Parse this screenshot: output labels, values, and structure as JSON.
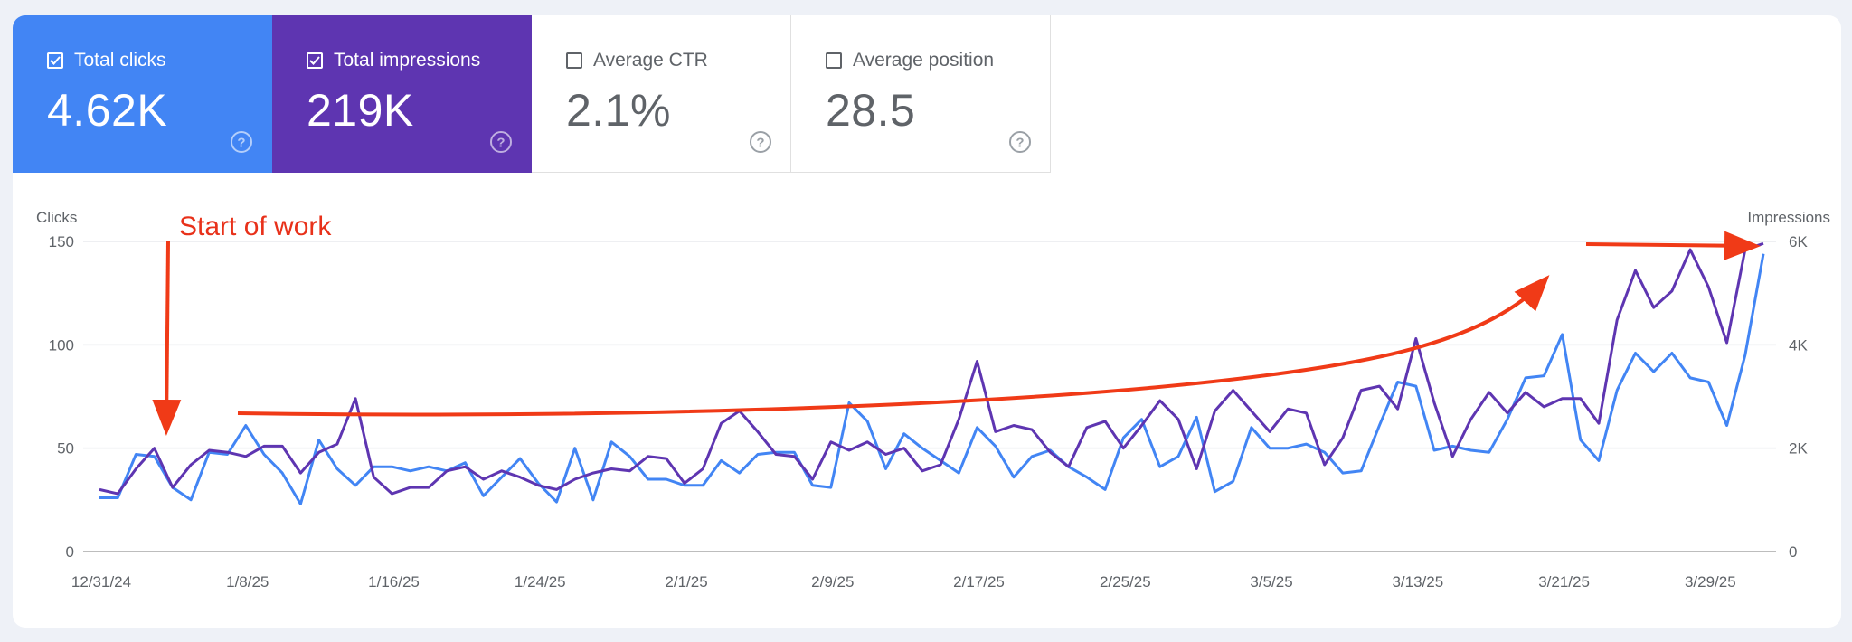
{
  "cards": [
    {
      "label": "Total clicks",
      "value": "4.62K",
      "checked": true,
      "color": "#4285f4"
    },
    {
      "label": "Total impressions",
      "value": "219K",
      "checked": true,
      "color": "#5e35b1"
    },
    {
      "label": "Average CTR",
      "value": "2.1%",
      "checked": false,
      "color": "#ffffff"
    },
    {
      "label": "Average position",
      "value": "28.5",
      "checked": false,
      "color": "#ffffff"
    }
  ],
  "annotation": {
    "text": "Start of work",
    "color": "#e8311a"
  },
  "chart_data": {
    "type": "line",
    "xlabel": "",
    "ylabel": "Clicks",
    "ylabel_right": "Impressions",
    "ylim": [
      0,
      150
    ],
    "ylim_right": [
      0,
      6000
    ],
    "grid": true,
    "x_tick_labels": [
      "12/31/24",
      "1/8/25",
      "1/16/25",
      "1/24/25",
      "2/1/25",
      "2/9/25",
      "2/17/25",
      "2/25/25",
      "3/5/25",
      "3/13/25",
      "3/21/25",
      "3/29/25"
    ],
    "y_tick_labels_left": [
      "0",
      "50",
      "100",
      "150"
    ],
    "y_tick_labels_right": [
      "0",
      "2K",
      "4K",
      "6K"
    ],
    "x_start": "12/31/24",
    "series": [
      {
        "name": "Total clicks",
        "axis": "left",
        "color": "#4285f4",
        "values": [
          26,
          26,
          47,
          46,
          31,
          25,
          48,
          47,
          61,
          47,
          38,
          23,
          54,
          40,
          32,
          41,
          41,
          39,
          41,
          39,
          43,
          27,
          36,
          45,
          33,
          24,
          50,
          25,
          53,
          46,
          35,
          35,
          32,
          32,
          44,
          38,
          47,
          48,
          48,
          32,
          31,
          72,
          63,
          40,
          57,
          50,
          44,
          38,
          60,
          51,
          36,
          46,
          49,
          41,
          36,
          30,
          55,
          64,
          41,
          46,
          65,
          29,
          34,
          60,
          50,
          50,
          52,
          48,
          38,
          39,
          61,
          82,
          80,
          49,
          51,
          49,
          48,
          64,
          84,
          85,
          105,
          54,
          44,
          78,
          96,
          87,
          96,
          84,
          82,
          61,
          95,
          144
        ]
      },
      {
        "name": "Total impressions",
        "axis": "right",
        "color": "#5e35b1",
        "values": [
          1200,
          1120,
          1600,
          2000,
          1240,
          1680,
          1960,
          1920,
          1840,
          2040,
          2040,
          1520,
          1920,
          2080,
          2960,
          1440,
          1120,
          1240,
          1240,
          1560,
          1640,
          1400,
          1560,
          1440,
          1280,
          1200,
          1400,
          1520,
          1600,
          1560,
          1840,
          1800,
          1320,
          1600,
          2480,
          2720,
          2320,
          1880,
          1840,
          1400,
          2120,
          1960,
          2120,
          1880,
          2000,
          1560,
          1680,
          2560,
          3680,
          2320,
          2440,
          2360,
          1920,
          1640,
          2400,
          2520,
          2000,
          2440,
          2920,
          2560,
          1600,
          2720,
          3120,
          2720,
          2320,
          2760,
          2680,
          1680,
          2200,
          3120,
          3200,
          2760,
          4120,
          2880,
          1840,
          2560,
          3080,
          2680,
          3080,
          2800,
          2960,
          2960,
          2480,
          4480,
          5440,
          4720,
          5040,
          5840,
          5120,
          4040,
          5840,
          5960
        ]
      }
    ]
  }
}
